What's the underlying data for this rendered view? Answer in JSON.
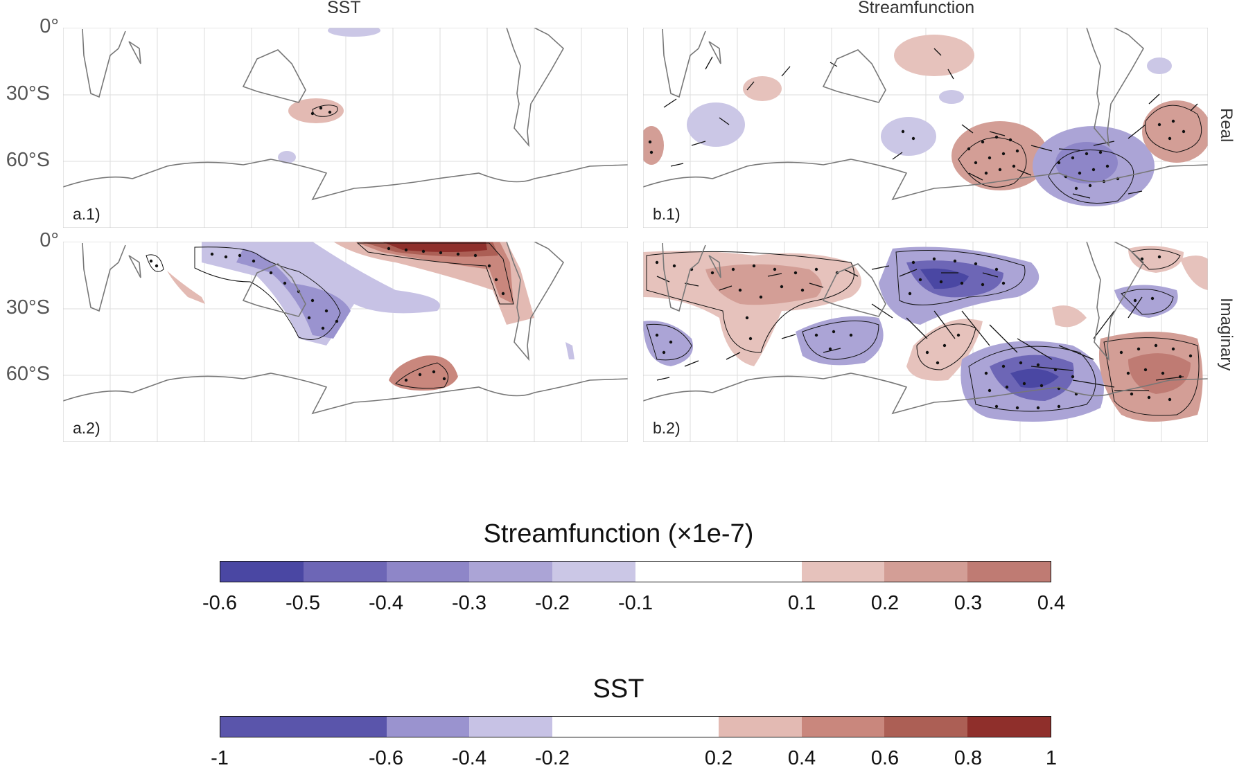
{
  "columns": {
    "left": "SST",
    "right": "Streamfunction"
  },
  "rows": {
    "top": "Real",
    "bottom": "Imaginary"
  },
  "latitude_labels": [
    "0°",
    "30°S",
    "60°S"
  ],
  "panels": {
    "a1": "a.1)",
    "b1": "b.1)",
    "a2": "a.2)",
    "b2": "b.2)"
  },
  "colorbars": {
    "streamfunction": {
      "title": "Streamfunction (×1e-7)",
      "ticks": [
        "-0.6",
        "-0.5",
        "-0.4",
        "-0.3",
        "-0.2",
        "-0.1",
        "0.1",
        "0.2",
        "0.3",
        "0.4"
      ],
      "tick_values": [
        -0.6,
        -0.5,
        -0.4,
        -0.3,
        -0.2,
        -0.1,
        0.1,
        0.2,
        0.3,
        0.4
      ],
      "range": [
        -0.6,
        0.4
      ],
      "colors": [
        "#4a47a3",
        "#6d66b6",
        "#8e86c8",
        "#aba4d6",
        "#cbc7e6",
        "#ffffff",
        "#ffffff",
        "#e6c2bc",
        "#d39e96",
        "#bf7b73"
      ]
    },
    "sst": {
      "title": "SST",
      "ticks": [
        "-1",
        "-0.6",
        "-0.4",
        "-0.2",
        "0.2",
        "0.4",
        "0.6",
        "0.8",
        "1"
      ],
      "tick_values": [
        -1,
        -0.6,
        -0.4,
        -0.2,
        0.2,
        0.4,
        0.6,
        0.8,
        1
      ],
      "range": [
        -1,
        1
      ],
      "colors": [
        "#5a55ab",
        "#5a55ab",
        "#9a93cf",
        "#c7c2e5",
        "#ffffff",
        "#ffffff",
        "#e3bab3",
        "#c9877d",
        "#ac5f55",
        "#8f2f2b"
      ]
    }
  }
}
